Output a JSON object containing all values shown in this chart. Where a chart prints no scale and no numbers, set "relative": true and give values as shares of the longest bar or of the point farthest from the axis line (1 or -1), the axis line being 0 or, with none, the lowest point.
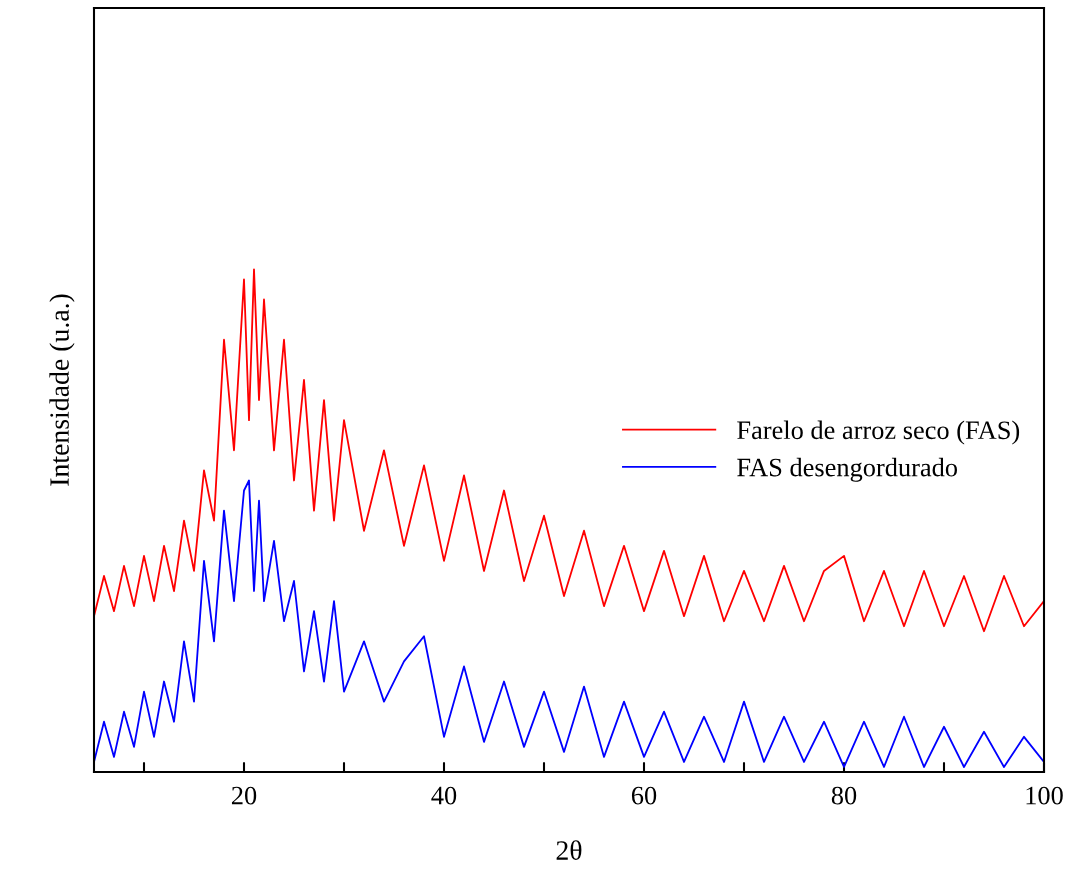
{
  "chart_data": {
    "type": "line",
    "xlabel": "2θ",
    "ylabel": "Intensidade (u.a.)",
    "relative": true,
    "xlim": [
      5,
      100
    ],
    "xticks": [
      {
        "value": 10,
        "label": null
      },
      20,
      {
        "value": 30,
        "label": null
      },
      40,
      {
        "value": 50,
        "label": null
      },
      60,
      {
        "value": 70,
        "label": null
      },
      80,
      {
        "value": 90,
        "label": null
      },
      100
    ],
    "x": [
      5,
      6,
      7,
      8,
      9,
      10,
      11,
      12,
      13,
      14,
      15,
      16,
      17,
      18,
      19,
      20,
      20.5,
      21,
      21.5,
      22,
      23,
      24,
      25,
      26,
      27,
      28,
      29,
      30,
      32,
      34,
      36,
      38,
      40,
      42,
      44,
      46,
      48,
      50,
      52,
      54,
      56,
      58,
      60,
      62,
      64,
      66,
      68,
      70,
      72,
      74,
      76,
      78,
      80,
      82,
      84,
      86,
      88,
      90,
      92,
      94,
      96,
      98,
      100
    ],
    "series": [
      {
        "name": "Farelo de arroz seco (FAS)",
        "color": "#ff0000",
        "values": [
          0.31,
          0.39,
          0.32,
          0.41,
          0.33,
          0.43,
          0.34,
          0.45,
          0.36,
          0.5,
          0.4,
          0.6,
          0.5,
          0.86,
          0.64,
          0.98,
          0.7,
          1.0,
          0.74,
          0.94,
          0.64,
          0.86,
          0.58,
          0.78,
          0.52,
          0.74,
          0.5,
          0.7,
          0.48,
          0.64,
          0.45,
          0.61,
          0.42,
          0.59,
          0.4,
          0.56,
          0.38,
          0.51,
          0.35,
          0.48,
          0.33,
          0.45,
          0.32,
          0.44,
          0.31,
          0.43,
          0.3,
          0.4,
          0.3,
          0.41,
          0.3,
          0.4,
          0.43,
          0.3,
          0.4,
          0.29,
          0.4,
          0.29,
          0.39,
          0.28,
          0.39,
          0.29,
          0.34
        ]
      },
      {
        "name": "FAS desengordurado",
        "color": "#0000ff",
        "values": [
          0.02,
          0.1,
          0.03,
          0.12,
          0.05,
          0.16,
          0.07,
          0.18,
          0.1,
          0.26,
          0.14,
          0.42,
          0.26,
          0.52,
          0.34,
          0.56,
          0.58,
          0.36,
          0.54,
          0.34,
          0.46,
          0.3,
          0.38,
          0.2,
          0.32,
          0.18,
          0.34,
          0.16,
          0.26,
          0.14,
          0.22,
          0.27,
          0.07,
          0.21,
          0.06,
          0.18,
          0.05,
          0.16,
          0.04,
          0.17,
          0.03,
          0.14,
          0.03,
          0.12,
          0.02,
          0.11,
          0.02,
          0.14,
          0.02,
          0.11,
          0.02,
          0.1,
          0.01,
          0.1,
          0.01,
          0.11,
          0.01,
          0.09,
          0.01,
          0.08,
          0.01,
          0.07,
          0.02
        ]
      }
    ],
    "legend": "right",
    "grid": false,
    "marker": "none",
    "line_style": "solid"
  }
}
